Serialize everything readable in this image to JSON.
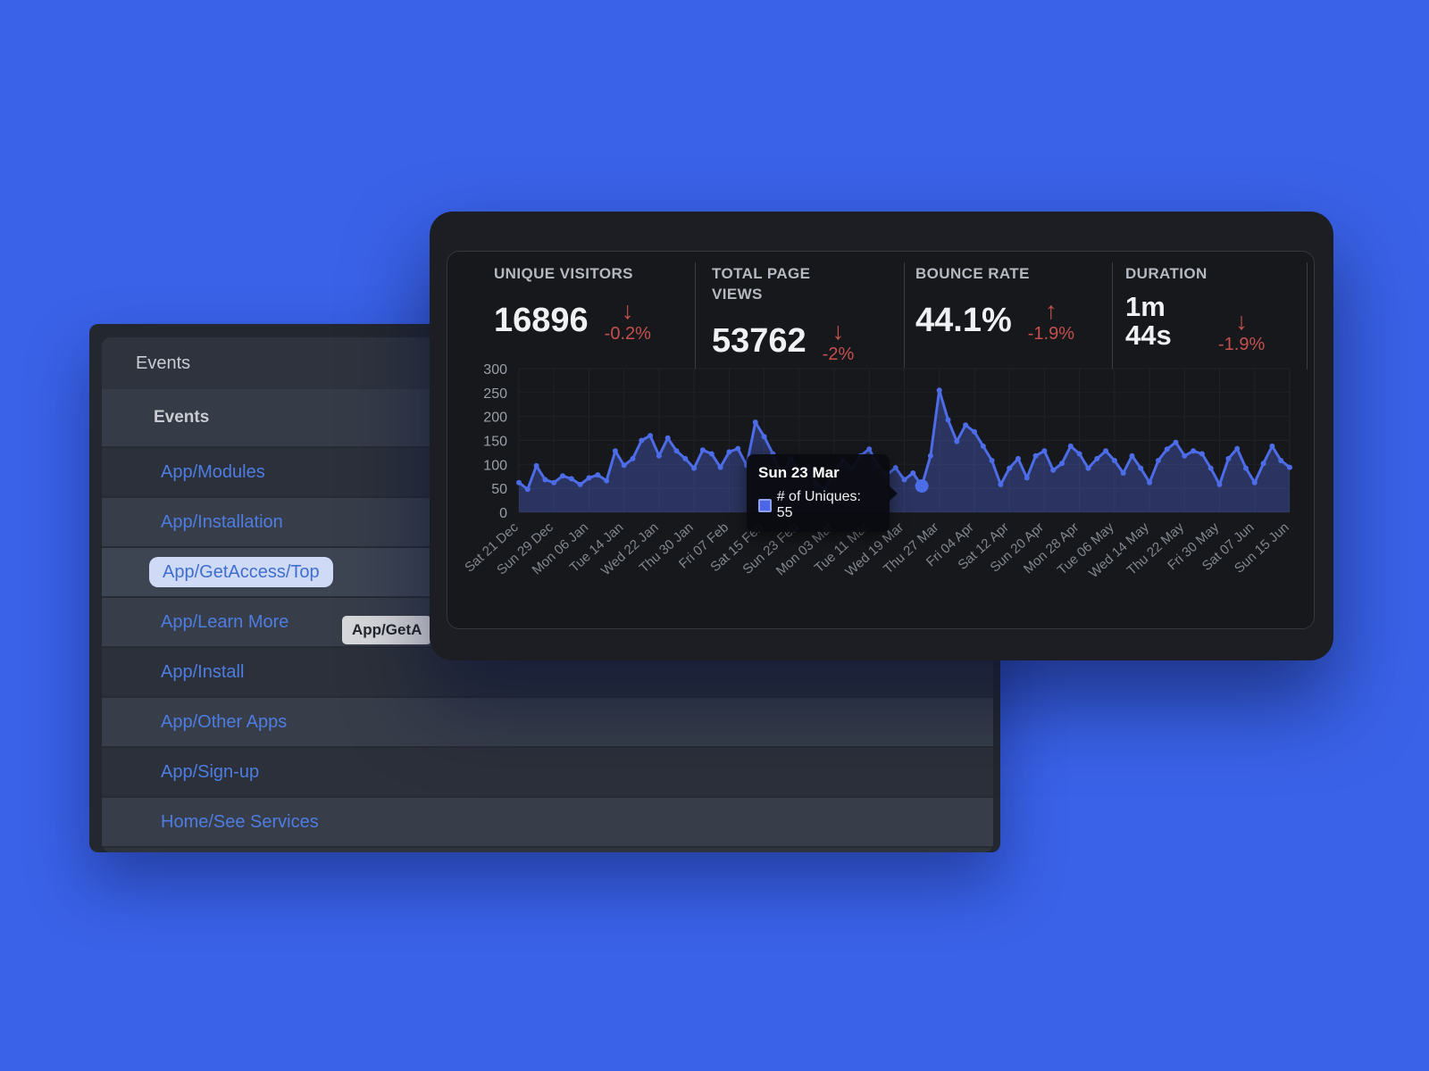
{
  "colors": {
    "desktop_blue": "#3a62e8",
    "link_blue": "#4e7de2",
    "delta_red": "#c4504e",
    "line_blue": "#4d6ce8"
  },
  "events_panel": {
    "title": "Events",
    "list_header": "Events",
    "items": [
      {
        "label": "App/Modules",
        "selected": false
      },
      {
        "label": "App/Installation",
        "selected": false
      },
      {
        "label": "App/GetAccess/Top",
        "selected": true
      },
      {
        "label": "App/Learn More",
        "selected": false
      },
      {
        "label": "App/Install",
        "selected": false
      },
      {
        "label": "App/Other Apps",
        "selected": false
      },
      {
        "label": "App/Sign-up",
        "selected": false
      },
      {
        "label": "Home/See Services",
        "selected": false
      }
    ],
    "hover_tooltip": "App/GetA"
  },
  "analytics_panel": {
    "stats": [
      {
        "label": "UNIQUE VISITORS",
        "value": "16896",
        "delta": "-0.2%",
        "direction": "down"
      },
      {
        "label": "TOTAL PAGE VIEWS",
        "value": "53762",
        "delta": "-2%",
        "direction": "down"
      },
      {
        "label": "BOUNCE RATE",
        "value": "44.1%",
        "delta": "-1.9%",
        "direction": "up"
      },
      {
        "label": "DURATION",
        "value": "1m 44s",
        "delta": "-1.9%",
        "direction": "down"
      }
    ]
  },
  "chart_data": {
    "type": "line",
    "title": "",
    "xlabel": "",
    "ylabel": "",
    "ylim": [
      0,
      300
    ],
    "y_ticks": [
      0,
      50,
      100,
      150,
      200,
      250,
      300
    ],
    "grid": true,
    "x_tick_labels": [
      "Sat 21 Dec",
      "Sun 29 Dec",
      "Mon 06 Jan",
      "Tue 14 Jan",
      "Wed 22 Jan",
      "Thu 30 Jan",
      "Fri 07 Feb",
      "Sat 15 Feb",
      "Sun 23 Feb",
      "Mon 03 Mar",
      "Tue 11 Mar",
      "Wed 19 Mar",
      "Thu 27 Mar",
      "Fri 04 Apr",
      "Sat 12 Apr",
      "Sun 20 Apr",
      "Mon 28 Apr",
      "Tue 06 May",
      "Wed 14 May",
      "Thu 22 May",
      "Fri 30 May",
      "Sat 07 Jun",
      "Sun 15 Jun"
    ],
    "points_per_tick": 4,
    "series": [
      {
        "name": "# of Uniques",
        "values": [
          62,
          48,
          97,
          68,
          62,
          76,
          70,
          58,
          72,
          78,
          66,
          128,
          98,
          112,
          150,
          160,
          118,
          155,
          128,
          112,
          92,
          130,
          122,
          94,
          126,
          133,
          98,
          188,
          158,
          122,
          74,
          112,
          84,
          94,
          58,
          48,
          86,
          108,
          92,
          118,
          132,
          98,
          78,
          93,
          68,
          82,
          55,
          118,
          255,
          193,
          148,
          182,
          168,
          138,
          108,
          58,
          92,
          112,
          72,
          118,
          128,
          88,
          102,
          138,
          122,
          92,
          112,
          128,
          108,
          82,
          118,
          92,
          62,
          108,
          132,
          146,
          118,
          128,
          122,
          92,
          58,
          112,
          133,
          92,
          62,
          102,
          138,
          108,
          94
        ]
      }
    ],
    "line_color": "#4d6ce8",
    "fill_color": "rgba(86,112,240,0.32)",
    "tooltip": {
      "title": "Sun 23 Mar",
      "text": "# of Uniques: 55",
      "value": 55,
      "point_index": 46
    }
  }
}
